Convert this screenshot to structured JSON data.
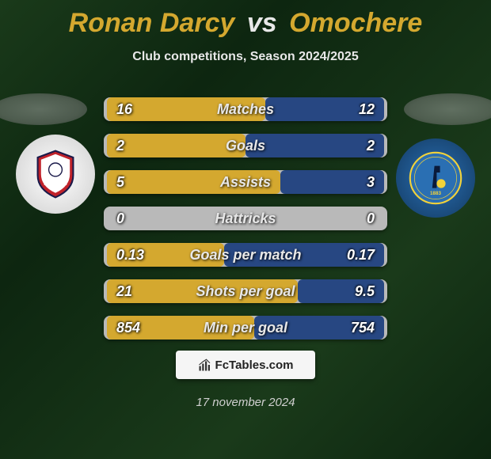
{
  "title": {
    "player1": "Ronan Darcy",
    "vs": "vs",
    "player2": "Omochere"
  },
  "subtitle": "Club competitions, Season 2024/2025",
  "colors": {
    "player1_bar": "#d4a82f",
    "player2_bar": "#274782",
    "neutral_bar": "#bababa",
    "title_p1": "#d4a82f",
    "title_vs": "#e8e8e8"
  },
  "bar_area_width": 350,
  "stats": [
    {
      "label": "Matches",
      "left_val": "16",
      "right_val": "12",
      "left_w": 200,
      "right_w": 150
    },
    {
      "label": "Goals",
      "left_val": "2",
      "right_val": "2",
      "left_w": 175,
      "right_w": 175
    },
    {
      "label": "Assists",
      "left_val": "5",
      "right_val": "3",
      "left_w": 219,
      "right_w": 131
    },
    {
      "label": "Hattricks",
      "left_val": "0",
      "right_val": "0",
      "left_w": 0,
      "right_w": 0
    },
    {
      "label": "Goals per match",
      "left_val": "0.13",
      "right_val": "0.17",
      "left_w": 148,
      "right_w": 202
    },
    {
      "label": "Shots per goal",
      "left_val": "21",
      "right_val": "9.5",
      "left_w": 241,
      "right_w": 109
    },
    {
      "label": "Min per goal",
      "left_val": "854",
      "right_val": "754",
      "left_w": 186,
      "right_w": 164
    }
  ],
  "footer_brand": "FcTables.com",
  "date": "17 november 2024",
  "logos": {
    "left_name": "crawley-town-logo",
    "right_name": "bristol-rovers-logo"
  }
}
